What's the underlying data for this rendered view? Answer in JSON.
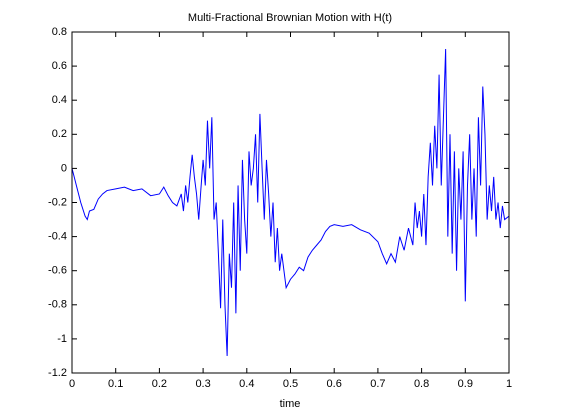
{
  "chart_data": {
    "type": "line",
    "title": "Multi-Fractional Brownian Motion with H(t)",
    "x_label": "time",
    "x": [
      0,
      0.005,
      0.01,
      0.02,
      0.03,
      0.035,
      0.04,
      0.05,
      0.06,
      0.07,
      0.08,
      0.1,
      0.12,
      0.14,
      0.16,
      0.18,
      0.2,
      0.21,
      0.22,
      0.23,
      0.24,
      0.25,
      0.255,
      0.26,
      0.265,
      0.27,
      0.275,
      0.28,
      0.285,
      0.29,
      0.295,
      0.3,
      0.305,
      0.31,
      0.315,
      0.32,
      0.325,
      0.33,
      0.335,
      0.34,
      0.345,
      0.35,
      0.355,
      0.36,
      0.365,
      0.37,
      0.375,
      0.38,
      0.385,
      0.39,
      0.395,
      0.4,
      0.405,
      0.41,
      0.415,
      0.42,
      0.425,
      0.43,
      0.435,
      0.44,
      0.445,
      0.45,
      0.455,
      0.46,
      0.465,
      0.47,
      0.475,
      0.48,
      0.49,
      0.5,
      0.51,
      0.52,
      0.53,
      0.54,
      0.55,
      0.56,
      0.57,
      0.58,
      0.59,
      0.6,
      0.62,
      0.64,
      0.66,
      0.68,
      0.7,
      0.71,
      0.72,
      0.73,
      0.74,
      0.75,
      0.76,
      0.77,
      0.78,
      0.785,
      0.79,
      0.795,
      0.8,
      0.805,
      0.81,
      0.815,
      0.82,
      0.825,
      0.83,
      0.835,
      0.84,
      0.845,
      0.85,
      0.855,
      0.86,
      0.865,
      0.87,
      0.875,
      0.88,
      0.885,
      0.89,
      0.895,
      0.9,
      0.905,
      0.91,
      0.915,
      0.92,
      0.925,
      0.93,
      0.935,
      0.94,
      0.945,
      0.95,
      0.955,
      0.96,
      0.965,
      0.97,
      0.975,
      0.98,
      0.985,
      0.99,
      1
    ],
    "series": [
      {
        "color": "#0000ff",
        "values": [
          0,
          -0.05,
          -0.1,
          -0.2,
          -0.28,
          -0.3,
          -0.25,
          -0.24,
          -0.18,
          -0.15,
          -0.13,
          -0.12,
          -0.11,
          -0.13,
          -0.12,
          -0.16,
          -0.15,
          -0.11,
          -0.16,
          -0.2,
          -0.22,
          -0.15,
          -0.25,
          -0.1,
          -0.2,
          -0.05,
          0.08,
          -0.05,
          -0.15,
          -0.3,
          -0.12,
          0.05,
          -0.1,
          0.28,
          0,
          0.3,
          -0.3,
          -0.2,
          -0.5,
          -0.82,
          -0.3,
          -0.8,
          -1.1,
          -0.5,
          -0.7,
          -0.2,
          -0.85,
          -0.1,
          -0.6,
          0.05,
          -0.3,
          -0.5,
          0.1,
          -0.1,
          0,
          0.2,
          -0.2,
          0.32,
          0,
          -0.3,
          0.05,
          -0.15,
          -0.4,
          -0.2,
          -0.55,
          -0.35,
          -0.6,
          -0.5,
          -0.7,
          -0.65,
          -0.62,
          -0.58,
          -0.6,
          -0.52,
          -0.48,
          -0.45,
          -0.42,
          -0.37,
          -0.34,
          -0.33,
          -0.34,
          -0.33,
          -0.36,
          -0.38,
          -0.43,
          -0.5,
          -0.56,
          -0.5,
          -0.55,
          -0.4,
          -0.48,
          -0.35,
          -0.45,
          -0.2,
          -0.35,
          -0.25,
          -0.4,
          -0.15,
          -0.45,
          -0.05,
          0.15,
          -0.1,
          0.25,
          0,
          0.55,
          -0.1,
          0.3,
          0.7,
          -0.4,
          0.2,
          -0.5,
          0.1,
          -0.6,
          0,
          -0.3,
          0.1,
          -0.78,
          -0.1,
          0.2,
          -0.3,
          0,
          -0.4,
          0.3,
          -0.1,
          0.48,
          0.2,
          -0.3,
          -0.1,
          -0.25,
          -0.05,
          -0.3,
          -0.2,
          -0.35,
          -0.22,
          -0.3,
          -0.28
        ]
      }
    ],
    "xlim": [
      0,
      1
    ],
    "ylim": [
      -1.2,
      0.8
    ],
    "xticks": [
      0,
      0.1,
      0.2,
      0.3,
      0.4,
      0.5,
      0.6,
      0.7,
      0.8,
      0.9,
      1
    ],
    "yticks": [
      -1.2,
      -1,
      -0.8,
      -0.6,
      -0.4,
      -0.2,
      0,
      0.2,
      0.4,
      0.6,
      0.8
    ]
  }
}
